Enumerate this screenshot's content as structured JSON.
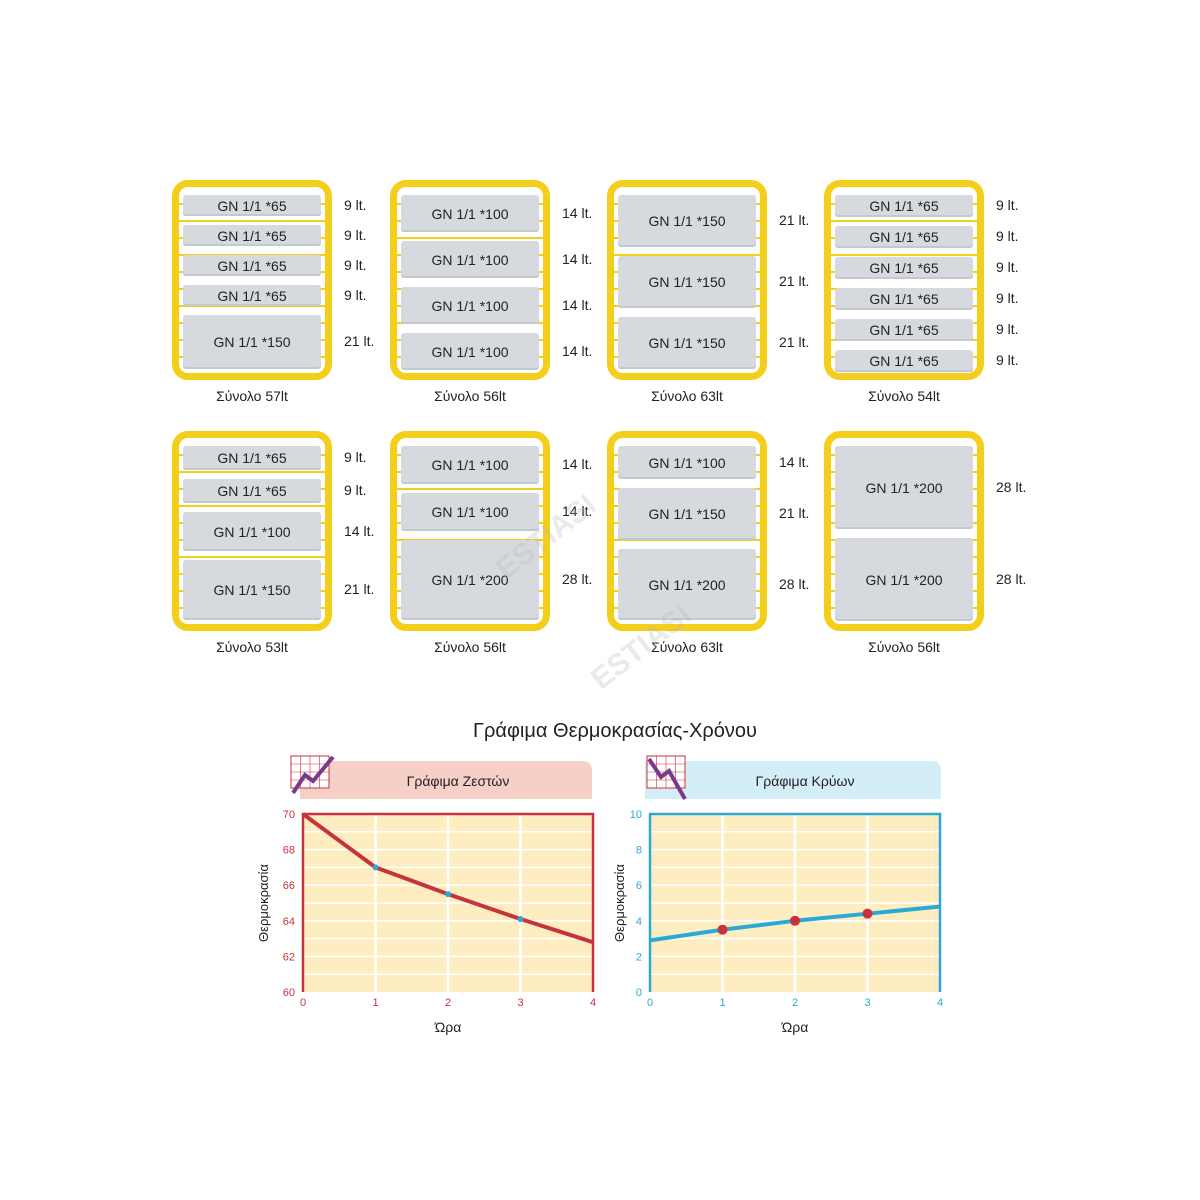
{
  "configurations": [
    {
      "trays": [
        {
          "label": "GN 1/1 *65",
          "liters": "9 lt."
        },
        {
          "label": "GN 1/1 *65",
          "liters": "9 lt."
        },
        {
          "label": "GN 1/1 *65",
          "liters": "9 lt."
        },
        {
          "label": "GN 1/1 *65",
          "liters": "9 lt."
        },
        {
          "label": "GN 1/1 *150",
          "liters": "21 lt."
        }
      ],
      "total": "Σύνολο 57lt"
    },
    {
      "trays": [
        {
          "label": "GN 1/1 *100",
          "liters": "14 lt."
        },
        {
          "label": "GN 1/1 *100",
          "liters": "14 lt."
        },
        {
          "label": "GN 1/1 *100",
          "liters": "14 lt."
        },
        {
          "label": "GN 1/1 *100",
          "liters": "14 lt."
        }
      ],
      "total": "Σύνολο 56lt"
    },
    {
      "trays": [
        {
          "label": "GN 1/1 *150",
          "liters": "21 lt."
        },
        {
          "label": "GN 1/1 *150",
          "liters": "21 lt."
        },
        {
          "label": "GN 1/1 *150",
          "liters": "21 lt."
        }
      ],
      "total": "Σύνολο 63lt"
    },
    {
      "trays": [
        {
          "label": "GN 1/1 *65",
          "liters": "9 lt."
        },
        {
          "label": "GN 1/1 *65",
          "liters": "9 lt."
        },
        {
          "label": "GN 1/1 *65",
          "liters": "9 lt."
        },
        {
          "label": "GN 1/1 *65",
          "liters": "9 lt."
        },
        {
          "label": "GN 1/1 *65",
          "liters": "9 lt."
        },
        {
          "label": "GN 1/1 *65",
          "liters": "9 lt."
        }
      ],
      "total": "Σύνολο 54lt"
    },
    {
      "trays": [
        {
          "label": "GN 1/1 *65",
          "liters": "9 lt."
        },
        {
          "label": "GN 1/1 *65",
          "liters": "9 lt."
        },
        {
          "label": "GN 1/1 *100",
          "liters": "14 lt."
        },
        {
          "label": "GN 1/1 *150",
          "liters": "21 lt."
        }
      ],
      "total": "Σύνολο 53lt"
    },
    {
      "trays": [
        {
          "label": "GN 1/1 *100",
          "liters": "14 lt."
        },
        {
          "label": "GN 1/1 *100",
          "liters": "14 lt."
        },
        {
          "label": "GN 1/1 *200",
          "liters": "28 lt."
        }
      ],
      "total": "Σύνολο 56lt"
    },
    {
      "trays": [
        {
          "label": "GN 1/1 *100",
          "liters": "14 lt."
        },
        {
          "label": "GN 1/1 *150",
          "liters": "21 lt."
        },
        {
          "label": "GN 1/1 *200",
          "liters": "28 lt."
        }
      ],
      "total": "Σύνολο 63lt"
    },
    {
      "trays": [
        {
          "label": "GN 1/1 *200",
          "liters": "28 lt."
        },
        {
          "label": "GN 1/1 *200",
          "liters": "28 lt."
        }
      ],
      "total": "Σύνολο 56lt"
    }
  ],
  "watermark": "ESTIASI",
  "chart_section_title": "Γράφιμα Θερμοκρασίας-Χρόνου",
  "chart_data": [
    {
      "type": "line",
      "title": "Γράφιμα Ζεστών",
      "xlabel": "Ώρα",
      "ylabel": "Θερμοκρασία",
      "x": [
        0,
        1,
        2,
        3,
        4
      ],
      "values": [
        70,
        67,
        65.5,
        64.1,
        62.8
      ],
      "marker_x": [
        1,
        2,
        3
      ],
      "xlim": [
        0,
        4
      ],
      "ylim": [
        60,
        70
      ],
      "yticks": [
        60,
        62,
        64,
        66,
        68,
        70
      ],
      "xticks": [
        0,
        1,
        2,
        3,
        4
      ],
      "grid": true,
      "axis_color": "#c8323c",
      "line_color": "#c8323c",
      "marker_color": "#2aa9d6",
      "header_color": "#f6cfc6",
      "plot_bg": "#fdedc0",
      "icon": "rising-graph-icon"
    },
    {
      "type": "line",
      "title": "Γράφιμα Κρύων",
      "xlabel": "Ώρα",
      "ylabel": "Θερμοκρασία",
      "x": [
        0,
        1,
        2,
        3,
        4
      ],
      "values": [
        2.9,
        3.5,
        4.0,
        4.4,
        4.8
      ],
      "marker_x": [
        1,
        2,
        3
      ],
      "xlim": [
        0,
        4
      ],
      "ylim": [
        0,
        10
      ],
      "yticks": [
        0,
        2,
        4,
        6,
        8,
        10
      ],
      "xticks": [
        0,
        1,
        2,
        3,
        4
      ],
      "grid": true,
      "axis_color": "#2aa9d6",
      "line_color": "#2aa9d6",
      "marker_color": "#c8323c",
      "header_color": "#d4eef8",
      "plot_bg": "#fdedc0",
      "icon": "falling-graph-icon"
    }
  ]
}
